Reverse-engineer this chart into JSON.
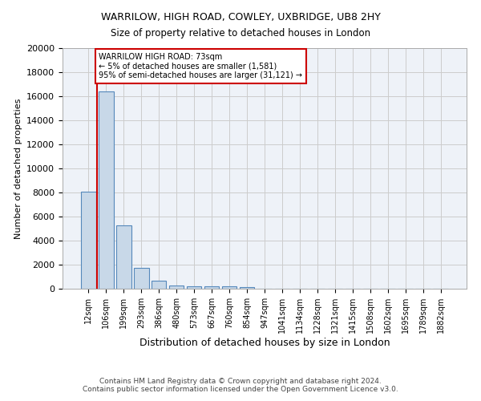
{
  "title": "WARRILOW, HIGH ROAD, COWLEY, UXBRIDGE, UB8 2HY",
  "subtitle": "Size of property relative to detached houses in London",
  "xlabel": "Distribution of detached houses by size in London",
  "ylabel": "Number of detached properties",
  "categories": [
    "12sqm",
    "106sqm",
    "199sqm",
    "293sqm",
    "386sqm",
    "480sqm",
    "573sqm",
    "667sqm",
    "760sqm",
    "854sqm",
    "947sqm",
    "1041sqm",
    "1134sqm",
    "1228sqm",
    "1321sqm",
    "1415sqm",
    "1508sqm",
    "1602sqm",
    "1695sqm",
    "1789sqm",
    "1882sqm"
  ],
  "values": [
    8100,
    16400,
    5300,
    1750,
    700,
    300,
    220,
    175,
    175,
    160,
    0,
    0,
    0,
    0,
    0,
    0,
    0,
    0,
    0,
    0,
    0
  ],
  "bar_color": "#c8d8e8",
  "bar_edge_color": "#5588bb",
  "annotation_text": "WARRILOW HIGH ROAD: 73sqm\n← 5% of detached houses are smaller (1,581)\n95% of semi-detached houses are larger (31,121) →",
  "annotation_box_color": "#ffffff",
  "annotation_box_edge_color": "#cc0000",
  "red_line_color": "#cc0000",
  "grid_color": "#cccccc",
  "background_color": "#eef2f8",
  "footer_text": "Contains HM Land Registry data © Crown copyright and database right 2024.\nContains public sector information licensed under the Open Government Licence v3.0.",
  "ylim": [
    0,
    20000
  ],
  "yticks": [
    0,
    2000,
    4000,
    6000,
    8000,
    10000,
    12000,
    14000,
    16000,
    18000,
    20000
  ]
}
